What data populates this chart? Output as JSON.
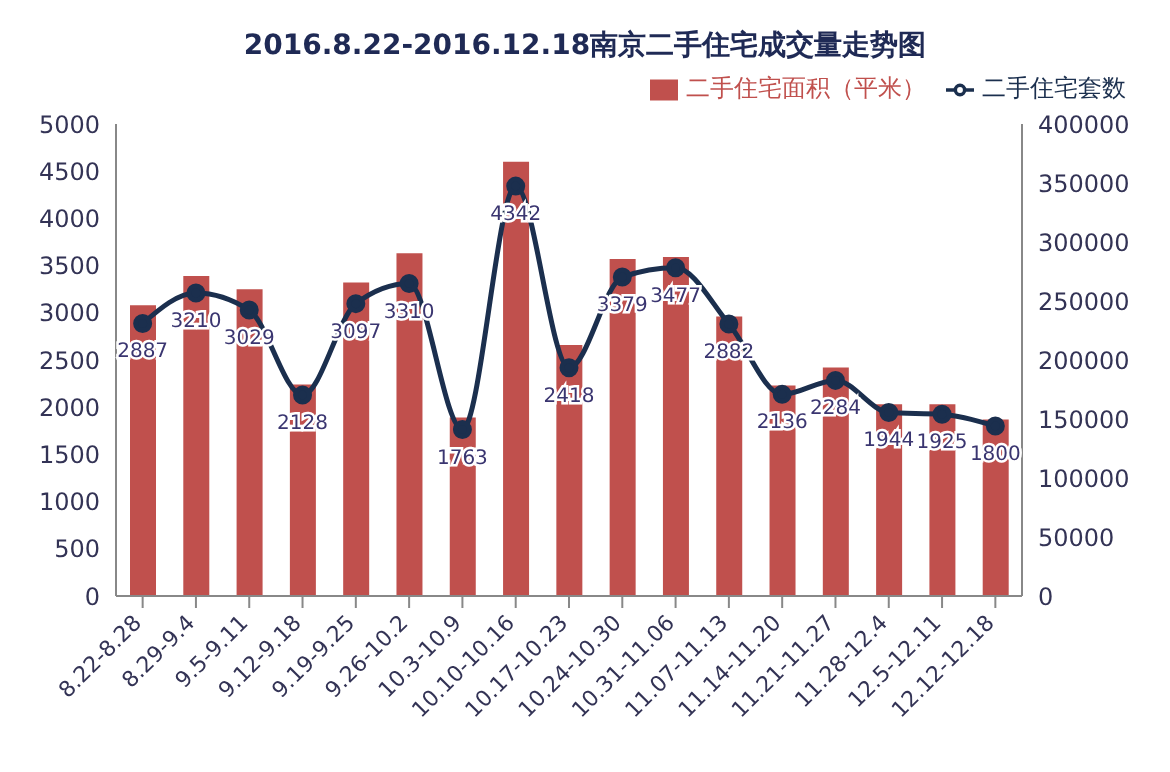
{
  "chart_data": {
    "type": "bar",
    "title": "2016.8.22-2016.12.18南京二手住宅成交量走势图",
    "categories": [
      "8.22-8.28",
      "8.29-9.4",
      "9.5-9.11",
      "9.12-9.18",
      "9.19-9.25",
      "9.26-10.2",
      "10.3-10.9",
      "10.10-10.16",
      "10.17-10.23",
      "10.24-10.30",
      "10.31-11.06",
      "11.07-11.13",
      "11.14-11.20",
      "11.21-11.27",
      "11.28-12.4",
      "12.5-12.11",
      "12.12-12.18"
    ],
    "series": [
      {
        "name": "二手住宅面积（平米）",
        "color": "#c0504d",
        "values": [
          3080,
          3390,
          3250,
          2240,
          3320,
          3630,
          1890,
          4600,
          2660,
          3570,
          3590,
          2960,
          2230,
          2420,
          2030,
          2030,
          1870
        ]
      },
      {
        "name": "二手住宅套数",
        "type": "line",
        "color": "#1b2f4e",
        "marker": "circle",
        "values": [
          2887,
          3210,
          3029,
          2128,
          3097,
          3310,
          1763,
          4342,
          2418,
          3379,
          3477,
          2882,
          2136,
          2284,
          1944,
          1925,
          1800
        ],
        "value_labels": [
          "2887",
          "3210",
          "3029",
          "2128",
          "3097",
          "3310",
          "1763",
          "4342",
          "2418",
          "3379",
          "3477",
          "2882",
          "2136",
          "2284",
          "1944",
          "1925",
          "1800"
        ]
      }
    ],
    "ylim": [
      0,
      5000
    ],
    "yticks": [
      0,
      500,
      1000,
      1500,
      2000,
      2500,
      3000,
      3500,
      4000,
      4500,
      5000
    ],
    "y2lim": [
      0,
      400000
    ],
    "y2ticks": [
      0,
      50000,
      100000,
      150000,
      200000,
      250000,
      300000,
      350000,
      400000
    ],
    "legend": "top"
  }
}
